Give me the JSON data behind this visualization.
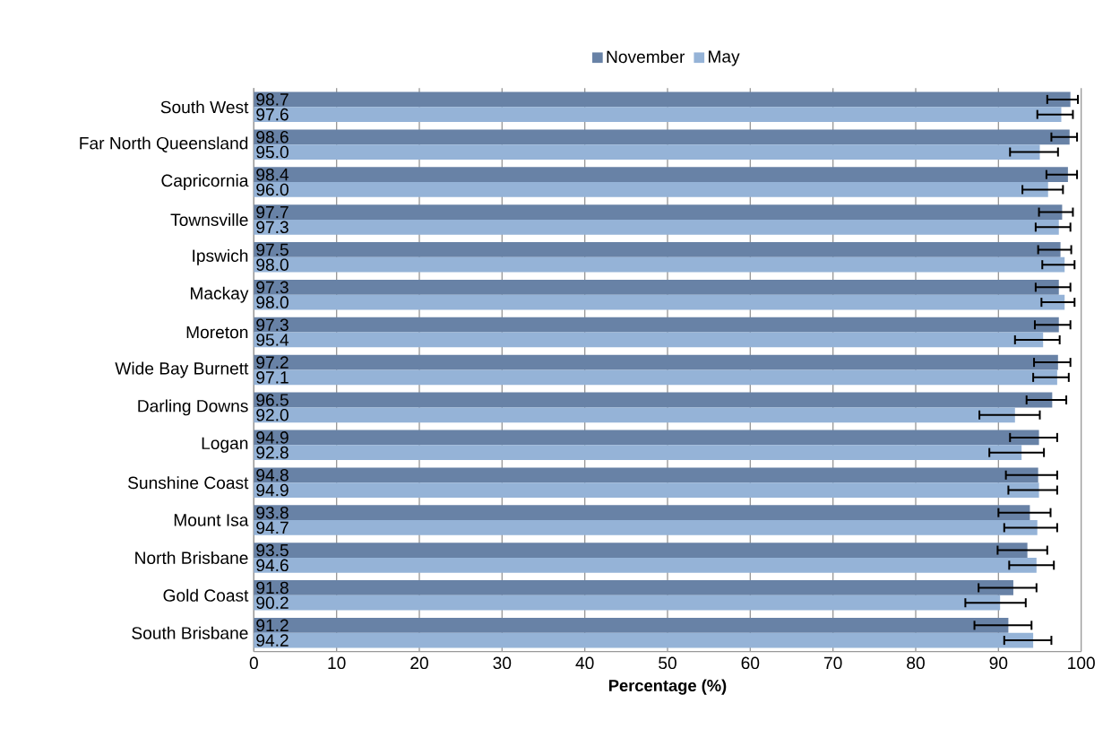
{
  "chart_data": {
    "type": "bar",
    "orientation": "horizontal",
    "xlabel": "Percentage (%)",
    "categories": [
      "South West",
      "Far North Queensland",
      "Capricornia",
      "Townsville",
      "Ipswich",
      "Mackay",
      "Moreton",
      "Wide Bay Burnett",
      "Darling Downs",
      "Logan",
      "Sunshine Coast",
      "Mount Isa",
      "North Brisbane",
      "Gold Coast",
      "South Brisbane"
    ],
    "series": [
      {
        "name": "November",
        "color": "#6882a6",
        "values": [
          98.7,
          98.6,
          98.4,
          97.7,
          97.5,
          97.3,
          97.3,
          97.2,
          96.5,
          94.9,
          94.8,
          93.8,
          93.5,
          91.8,
          91.2
        ],
        "value_labels": [
          "98.7",
          "98.6",
          "98.4",
          "97.7",
          "97.5",
          "97.3",
          "97.3",
          "97.2",
          "96.5",
          "94.9",
          "94.8",
          "93.8",
          "93.5",
          "91.8",
          "91.2"
        ],
        "errors": [
          [
            95.9,
            99.6
          ],
          [
            96.4,
            99.5
          ],
          [
            95.8,
            99.5
          ],
          [
            94.9,
            99.0
          ],
          [
            94.8,
            98.8
          ],
          [
            94.5,
            98.7
          ],
          [
            94.4,
            98.7
          ],
          [
            94.3,
            98.7
          ],
          [
            93.4,
            98.2
          ],
          [
            91.4,
            97.1
          ],
          [
            90.9,
            97.1
          ],
          [
            90.0,
            96.3
          ],
          [
            89.9,
            95.9
          ],
          [
            87.6,
            94.6
          ],
          [
            87.1,
            94.0
          ]
        ]
      },
      {
        "name": "May",
        "color": "#95b3d7",
        "values": [
          97.6,
          95.0,
          96.0,
          97.3,
          98.0,
          98.0,
          95.4,
          97.1,
          92.0,
          92.8,
          94.9,
          94.7,
          94.6,
          90.2,
          94.2
        ],
        "value_labels": [
          "97.6",
          "95.0",
          "96.0",
          "97.3",
          "98.0",
          "98.0",
          "95.4",
          "97.1",
          "92.0",
          "92.8",
          "94.9",
          "94.7",
          "94.6",
          "90.2",
          "94.2"
        ],
        "errors": [
          [
            94.7,
            99.0
          ],
          [
            91.4,
            97.2
          ],
          [
            92.9,
            97.8
          ],
          [
            94.5,
            98.7
          ],
          [
            95.3,
            99.2
          ],
          [
            95.2,
            99.2
          ],
          [
            92.0,
            97.4
          ],
          [
            94.2,
            98.5
          ],
          [
            87.7,
            95.0
          ],
          [
            88.9,
            95.5
          ],
          [
            91.2,
            97.1
          ],
          [
            90.7,
            97.1
          ],
          [
            91.3,
            96.7
          ],
          [
            86.0,
            93.3
          ],
          [
            90.7,
            96.4
          ]
        ]
      }
    ],
    "xlim": [
      0,
      100
    ],
    "xticks": [
      0,
      10,
      20,
      30,
      40,
      50,
      60,
      70,
      80,
      90,
      100
    ],
    "grid": "x",
    "legend": "top"
  }
}
